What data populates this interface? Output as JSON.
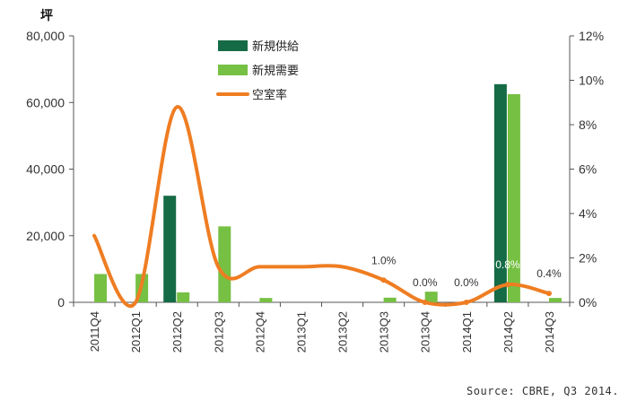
{
  "chart_data": {
    "type": "bar",
    "unit_left": "坪",
    "categories": [
      "2011Q4",
      "2012Q1",
      "2012Q2",
      "2012Q3",
      "2012Q4",
      "2013Q1",
      "2013Q2",
      "2013Q3",
      "2013Q4",
      "2014Q1",
      "2014Q2",
      "2014Q3"
    ],
    "series": [
      {
        "name": "新規供給",
        "kind": "bar",
        "axis": "left",
        "color": "#156b45",
        "values": [
          0,
          0,
          32000,
          0,
          0,
          0,
          0,
          0,
          0,
          0,
          65500,
          0
        ]
      },
      {
        "name": "新規需要",
        "kind": "bar",
        "axis": "left",
        "color": "#76c043",
        "values": [
          8500,
          8500,
          3000,
          22800,
          1300,
          0,
          0,
          1400,
          3200,
          0,
          62500,
          1300
        ]
      },
      {
        "name": "空室率",
        "kind": "line",
        "axis": "right",
        "color": "#ef7d22",
        "values": [
          3.0,
          0.0,
          8.8,
          1.6,
          1.6,
          1.6,
          1.6,
          1.0,
          0.0,
          0.0,
          0.8,
          0.4
        ]
      }
    ],
    "data_labels": [
      {
        "category": "2013Q3",
        "text": "1.0%"
      },
      {
        "category": "2013Q4",
        "text": "0.0%"
      },
      {
        "category": "2014Q1",
        "text": "0.0%"
      },
      {
        "category": "2014Q2",
        "text": "0.8%"
      },
      {
        "category": "2014Q3",
        "text": "0.4%"
      }
    ],
    "y_left": {
      "min": 0,
      "max": 80000,
      "ticks": [
        "0",
        "20,000",
        "40,000",
        "60,000",
        "80,000"
      ]
    },
    "y_right": {
      "min": 0,
      "max": 12,
      "ticks": [
        "0%",
        "2%",
        "4%",
        "6%",
        "8%",
        "10%",
        "12%"
      ]
    },
    "legend": {
      "position": "top-center"
    },
    "source": "Source: CBRE, Q3 2014.",
    "grid": false
  }
}
